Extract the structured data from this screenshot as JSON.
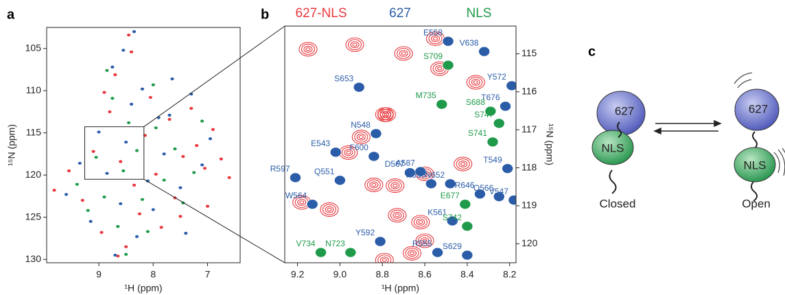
{
  "chart_data": [
    {
      "type": "scatter",
      "panel_label": "a",
      "xlabel": "¹H (ppm)",
      "ylabel": "¹⁵N (ppm)",
      "xlim": [
        9.96,
        6.4
      ],
      "ylim": [
        102.5,
        130.4
      ],
      "xticks": [
        9,
        8,
        7
      ],
      "yticks": [
        105,
        110,
        115,
        120,
        125,
        130
      ],
      "series": [
        {
          "color": "#e8383d",
          "x": [
            9.82,
            9.55,
            9.3,
            9.1,
            8.95,
            8.8,
            8.7,
            8.6,
            8.5,
            8.4,
            8.35,
            8.25,
            8.15,
            8.05,
            7.95,
            7.85,
            7.7,
            7.6,
            7.45,
            7.3,
            7.2,
            7.05,
            6.9,
            6.75,
            6.6,
            8.45,
            8.65,
            8.9,
            7.5,
            7.0
          ],
          "values": [
            121.8,
            119.5,
            123,
            117.2,
            126.8,
            112.5,
            108.1,
            118.4,
            128.5,
            105.4,
            121.2,
            124.6,
            115.3,
            110.8,
            119.9,
            126.2,
            113.4,
            122.7,
            117.8,
            112.1,
            116.5,
            119.2,
            114.6,
            118.1,
            120.3,
            103.4,
            129.6,
            110.2,
            124.9,
            123.7
          ]
        },
        {
          "color": "#2a5ca8",
          "x": [
            9.6,
            9.35,
            9.15,
            9.0,
            8.85,
            8.75,
            8.6,
            8.5,
            8.4,
            8.3,
            8.2,
            8.1,
            8.0,
            7.9,
            7.8,
            7.65,
            7.5,
            7.4,
            7.3,
            7.1,
            6.95,
            8.55,
            8.7,
            7.7,
            8.35
          ],
          "values": [
            122.3,
            118.6,
            125.5,
            114.9,
            119.8,
            107.2,
            123.4,
            116.1,
            111.6,
            127.3,
            109.8,
            120.7,
            124.1,
            113.2,
            117.5,
            108.6,
            121.5,
            126.9,
            110.4,
            118.8,
            115.7,
            105.2,
            129.5,
            112.9,
            103.0
          ]
        },
        {
          "color": "#1e9a4a",
          "x": [
            9.4,
            9.2,
            9.05,
            8.9,
            8.75,
            8.65,
            8.55,
            8.45,
            8.3,
            8.2,
            8.1,
            7.95,
            7.8,
            7.6,
            7.45,
            7.25,
            7.1,
            8.0,
            8.5,
            8.85
          ],
          "values": [
            121.1,
            124.2,
            117.9,
            122.6,
            110.9,
            126.1,
            119.5,
            113.8,
            117.1,
            122.9,
            126.7,
            114.4,
            120.6,
            116.9,
            123.3,
            119.7,
            113.6,
            109.3,
            129.4,
            107.6
          ]
        }
      ]
    },
    {
      "type": "scatter",
      "panel_label": "b",
      "xlabel": "¹H (ppm)",
      "ylabel": "¹⁵N (ppm)",
      "xlim": [
        9.26,
        8.17
      ],
      "ylim": [
        114.27,
        120.5
      ],
      "xticks": [
        9.2,
        {
          "value": 9,
          "label": "9.0"
        },
        8.8,
        8.6,
        8.4,
        8.2
      ],
      "yticks": [
        115,
        116,
        117,
        118,
        119,
        120
      ],
      "series": [
        {
          "name": "627-NLS",
          "color": "#e8383d",
          "x": [
            9.15,
            8.93,
            8.7,
            8.53,
            8.78,
            8.79,
            8.9,
            8.96,
            8.6,
            8.84,
            8.74,
            9.18,
            9.05,
            8.73,
            8.62,
            8.6,
            8.66,
            8.79,
            8.55,
            8.42,
            8.36
          ],
          "values": [
            114.88,
            114.76,
            114.99,
            115.39,
            116.6,
            116.6,
            117.19,
            117.6,
            118.16,
            118.45,
            118.47,
            118.91,
            119.1,
            119.25,
            119.43,
            119.92,
            120.25,
            120.43,
            114.6,
            117.9,
            115.75
          ]
        },
        {
          "name": "627",
          "color": "#2a5ca8",
          "x": [
            8.49,
            8.32,
            8.91,
            8.19,
            8.22,
            8.83,
            9.02,
            8.84,
            8.67,
            8.62,
            8.48,
            8.34,
            8.21,
            9.21,
            9.0,
            8.57,
            8.25,
            9.13,
            8.18,
            8.47,
            8.81,
            8.54,
            8.4
          ],
          "values": [
            114.67,
            114.94,
            115.88,
            115.84,
            116.38,
            117.1,
            117.59,
            117.7,
            118.13,
            118.1,
            118.42,
            118.69,
            118.02,
            118.26,
            118.33,
            118.42,
            118.76,
            118.96,
            118.85,
            119.4,
            119.94,
            120.23,
            120.3
          ],
          "labels": [
            "E558",
            "V638",
            "S653",
            "Y572",
            "T676",
            "N548",
            "E543",
            "F600",
            "D567",
            "A587",
            "N652",
            "R646",
            "T549",
            "R597",
            "Q551",
            "R650",
            "Q566",
            "W564",
            "V547",
            "K561",
            "Y592",
            "R555",
            "S629"
          ]
        },
        {
          "name": "NLS",
          "color": "#1e9a4a",
          "x": [
            8.49,
            8.52,
            8.29,
            8.25,
            8.28,
            8.41,
            8.4,
            9.09,
            8.95
          ],
          "values": [
            115.3,
            116.33,
            116.51,
            116.83,
            117.32,
            118.96,
            119.54,
            120.23,
            120.23
          ],
          "labels": [
            "S709",
            "M735",
            "S688",
            "S747",
            "S741",
            "E677",
            "S742",
            "V734",
            "N723"
          ]
        }
      ]
    }
  ],
  "diagram": {
    "panel_label": "c",
    "states": [
      {
        "name": "Closed",
        "domains": [
          "627",
          "NLS"
        ]
      },
      {
        "name": "Open",
        "domains": [
          "627",
          "NLS"
        ]
      }
    ]
  }
}
